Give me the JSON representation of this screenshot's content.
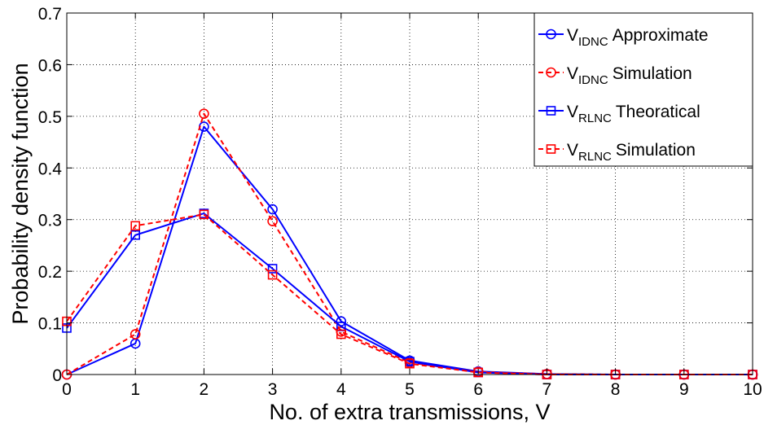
{
  "chart_data": {
    "type": "line",
    "x": [
      0,
      1,
      2,
      3,
      4,
      5,
      6,
      7,
      8,
      9,
      10
    ],
    "xlabel": "No. of extra transmissions, V",
    "ylabel": "Probability density function",
    "xlim": [
      0,
      10
    ],
    "ylim": [
      0,
      0.7
    ],
    "xticks": [
      "0",
      "1",
      "2",
      "3",
      "4",
      "5",
      "6",
      "7",
      "8",
      "9",
      "10"
    ],
    "yticks": [
      "0",
      "0.1",
      "0.2",
      "0.3",
      "0.4",
      "0.5",
      "0.6",
      "0.7"
    ],
    "grid": true,
    "legend_position": "top-right",
    "series": [
      {
        "name": "V_IDNC Approximate",
        "legend_main": "V",
        "legend_sub": "IDNC",
        "legend_rest": "Approximate",
        "color": "#0000ff",
        "line_style": "solid",
        "marker": "circle",
        "values": [
          0.0,
          0.06,
          0.48,
          0.32,
          0.103,
          0.027,
          0.006,
          0.001,
          0.0,
          0.0,
          0.0
        ]
      },
      {
        "name": "V_IDNC Simulation",
        "legend_main": "V",
        "legend_sub": "IDNC",
        "legend_rest": "Simulation",
        "color": "#ff0000",
        "line_style": "dashed",
        "marker": "circle",
        "values": [
          0.0,
          0.078,
          0.505,
          0.297,
          0.083,
          0.023,
          0.005,
          0.001,
          0.0,
          0.0,
          0.0
        ]
      },
      {
        "name": "V_RLNC Theoratical",
        "legend_main": "V",
        "legend_sub": "RLNC",
        "legend_rest": "Theoratical",
        "color": "#0000ff",
        "line_style": "solid",
        "marker": "square",
        "values": [
          0.09,
          0.27,
          0.312,
          0.205,
          0.093,
          0.025,
          0.004,
          0.0,
          0.0,
          0.0,
          0.0
        ]
      },
      {
        "name": "V_RLNC Simulation",
        "legend_main": "V",
        "legend_sub": "RLNC",
        "legend_rest": "Simulation",
        "color": "#ff0000",
        "line_style": "dashed",
        "marker": "square",
        "values": [
          0.103,
          0.288,
          0.31,
          0.193,
          0.078,
          0.021,
          0.004,
          0.0,
          0.0,
          0.0,
          0.0
        ]
      }
    ]
  }
}
